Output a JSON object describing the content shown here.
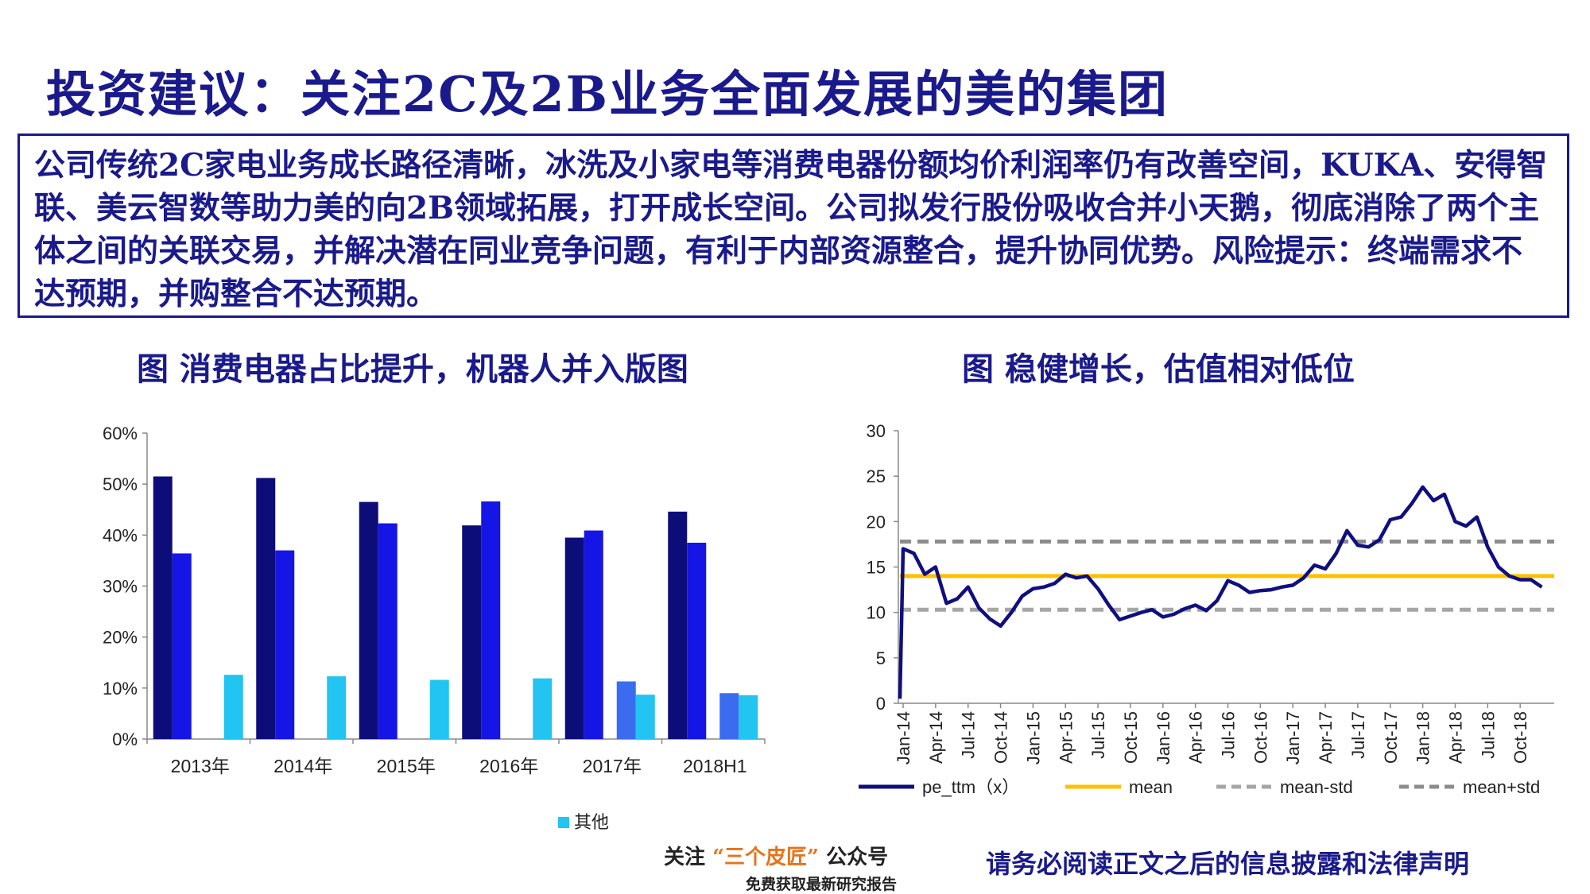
{
  "page": {
    "title": "投资建议：关注2C及2B业务全面发展的美的集团",
    "summary": "公司传统2C家电业务成长路径清晰，冰洗及小家电等消费电器份额均价利润率仍有改善空间，KUKA、安得智联、美云智数等助力美的向2B领域拓展，打开成长空间。公司拟发行股份吸收合并小天鹅，彻底消除了两个主体之间的关联交易，并解决潜在同业竞争问题，有利于内部资源整合，提升协同优势。风险提示：终端需求不达预期，并购整合不达预期。",
    "footer": {
      "follow_prefix": "关注",
      "follow_accent": "“三个皮匠”",
      "follow_suffix": "公众号",
      "follow_sub": "免费获取最新研究报告",
      "disclaimer": "请务必阅读正文之后的信息披露和法律声明"
    }
  },
  "colors": {
    "brand_navy": "#1a1a8c",
    "bar_series_1": "#0d0d7a",
    "bar_series_2": "#1515e6",
    "bar_series_3": "#3b6cf0",
    "bar_series_4": "#22c4f2",
    "pe_line": "#0f0f80",
    "mean_line": "#ffc000",
    "band_std_low": "#a6a6a6",
    "band_std_high": "#8c8c8c"
  },
  "chart_data": [
    {
      "type": "bar",
      "title": "图  消费电器占比提升，机器人并入版图",
      "categories": [
        "2013年",
        "2014年",
        "2015年",
        "2016年",
        "2017年",
        "2018H1"
      ],
      "ylim": [
        0,
        60
      ],
      "yticks": [
        "0%",
        "10%",
        "20%",
        "30%",
        "40%",
        "50%",
        "60%"
      ],
      "legend_position": "bottom",
      "series": [
        {
          "name": "",
          "values": [
            51.5,
            51.2,
            46.5,
            41.9,
            39.5,
            44.6
          ]
        },
        {
          "name": "",
          "values": [
            36.4,
            37.0,
            42.3,
            46.6,
            40.9,
            38.5
          ]
        },
        {
          "name": "",
          "values": [
            null,
            null,
            null,
            null,
            11.3,
            9.0
          ]
        },
        {
          "name": "其他",
          "values": [
            12.6,
            12.3,
            11.6,
            11.9,
            8.7,
            8.6
          ]
        }
      ]
    },
    {
      "type": "line",
      "title": "图  稳健增长，估值相对低位",
      "xticks": [
        "Jan-14",
        "Apr-14",
        "Jul-14",
        "Oct-14",
        "Jan-15",
        "Apr-15",
        "Jul-15",
        "Oct-15",
        "Jan-16",
        "Apr-16",
        "Jul-16",
        "Oct-16",
        "Jan-17",
        "Apr-17",
        "Jul-17",
        "Oct-17",
        "Jan-18",
        "Apr-18",
        "Jul-18",
        "Oct-18"
      ],
      "ylim": [
        0,
        30
      ],
      "yticks": [
        "0",
        "5",
        "10",
        "15",
        "20",
        "25",
        "30"
      ],
      "legend_position": "bottom",
      "series": [
        {
          "name": "pe_ttm（x）",
          "x": [
            "2014-01",
            "2014-02",
            "2014-03",
            "2014-04",
            "2014-05",
            "2014-06",
            "2014-07",
            "2014-08",
            "2014-09",
            "2014-10",
            "2014-11",
            "2014-12",
            "2015-01",
            "2015-02",
            "2015-03",
            "2015-04",
            "2015-05",
            "2015-06",
            "2015-07",
            "2015-08",
            "2015-09",
            "2015-10",
            "2015-11",
            "2015-12",
            "2016-01",
            "2016-02",
            "2016-03",
            "2016-04",
            "2016-05",
            "2016-06",
            "2016-07",
            "2016-08",
            "2016-09",
            "2016-10",
            "2016-11",
            "2016-12",
            "2017-01",
            "2017-02",
            "2017-03",
            "2017-04",
            "2017-05",
            "2017-06",
            "2017-07",
            "2017-08",
            "2017-09",
            "2017-10",
            "2017-11",
            "2017-12",
            "2018-01",
            "2018-02",
            "2018-03",
            "2018-04",
            "2018-05",
            "2018-06",
            "2018-07",
            "2018-08",
            "2018-09",
            "2018-10",
            "2018-11",
            "2018-12"
          ],
          "values": [
            17.0,
            16.5,
            14.2,
            15.0,
            11.0,
            11.5,
            12.8,
            10.5,
            9.3,
            8.5,
            10.0,
            11.8,
            12.6,
            12.8,
            13.2,
            14.2,
            13.8,
            14.0,
            12.6,
            10.8,
            9.2,
            9.6,
            10.0,
            10.3,
            9.5,
            9.8,
            10.4,
            10.8,
            10.2,
            11.3,
            13.5,
            13.0,
            12.2,
            12.4,
            12.5,
            12.8,
            13.0,
            13.8,
            15.2,
            14.8,
            16.5,
            19.0,
            17.4,
            17.2,
            18.0,
            20.2,
            20.5,
            22.0,
            23.8,
            22.3,
            23.0,
            20.0,
            19.5,
            20.5,
            17.2,
            15.0,
            14.0,
            13.6,
            13.6,
            12.8
          ]
        },
        {
          "name": "mean",
          "values": [
            14.0
          ]
        },
        {
          "name": "mean-std",
          "values": [
            10.3
          ]
        },
        {
          "name": "mean+std",
          "values": [
            17.8
          ]
        }
      ]
    }
  ]
}
